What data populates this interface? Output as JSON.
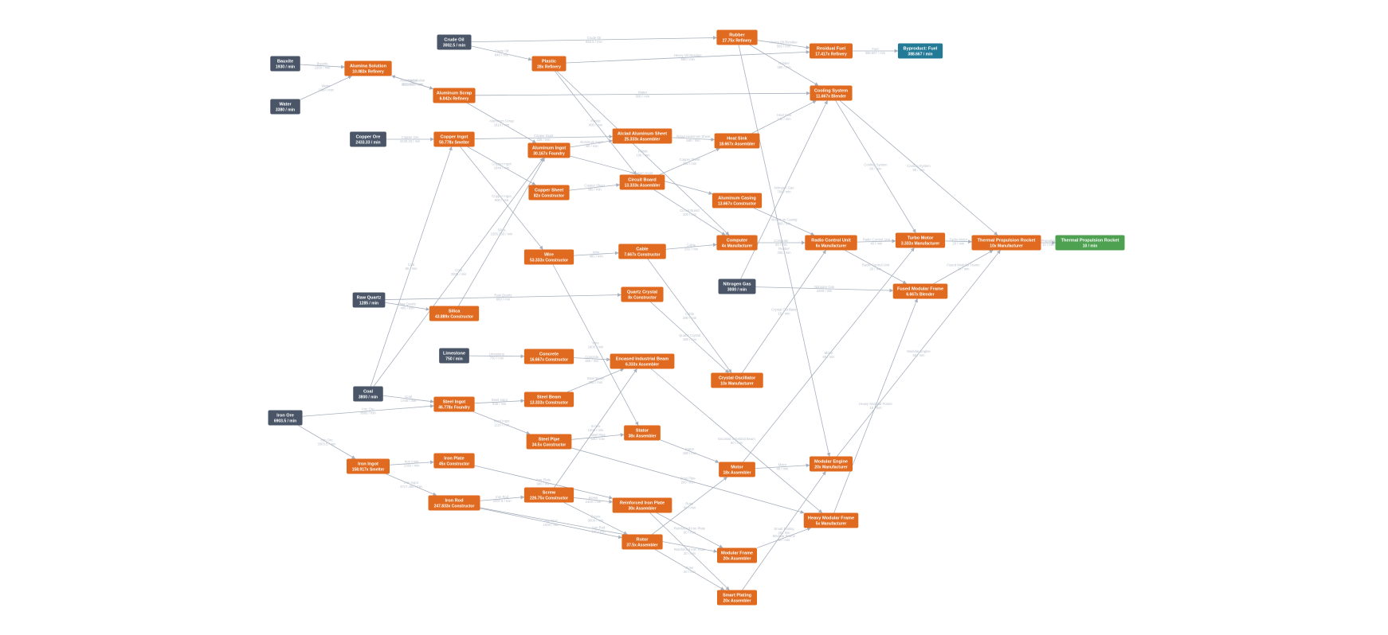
{
  "colors": {
    "source": "#4a5668",
    "machine": "#e06a1f",
    "byproduct": "#237a96",
    "goal": "#4fa152",
    "edge": "#a7b0bd",
    "edge_label": "#b8c0cb"
  },
  "nodes": [
    {
      "id": "bauxite",
      "title": "Bauxite",
      "sub": "1930 / min",
      "kind": "source"
    },
    {
      "id": "water",
      "title": "Water",
      "sub": "3380 / min",
      "kind": "source"
    },
    {
      "id": "crude",
      "title": "Crude Oil",
      "sub": "3002.5 / min",
      "kind": "source"
    },
    {
      "id": "copperore",
      "title": "Copper Ore",
      "sub": "2433.33 / min",
      "kind": "source"
    },
    {
      "id": "rawquartz",
      "title": "Raw Quartz",
      "sub": "1285 / min",
      "kind": "source"
    },
    {
      "id": "limestone",
      "title": "Limestone",
      "sub": "750 / min",
      "kind": "source"
    },
    {
      "id": "coal",
      "title": "Coal",
      "sub": "3800 / min",
      "kind": "source"
    },
    {
      "id": "ironore",
      "title": "Iron Ore",
      "sub": "6903.5 / min",
      "kind": "source"
    },
    {
      "id": "nitrogen",
      "title": "Nitrogen Gas",
      "sub": "3000 / min",
      "kind": "source"
    },
    {
      "id": "alumina",
      "title": "Alumina Solution",
      "sub": "10.083x Refinery",
      "kind": "machine"
    },
    {
      "id": "alscrap",
      "title": "Aluminum Scrap",
      "sub": "6.042x Refinery",
      "kind": "machine"
    },
    {
      "id": "plastic",
      "title": "Plastic",
      "sub": "28x Refinery",
      "kind": "machine"
    },
    {
      "id": "rubber",
      "title": "Rubber",
      "sub": "27.75x Refinery",
      "kind": "machine"
    },
    {
      "id": "resfuel",
      "title": "Residual Fuel",
      "sub": "17.417x Refinery",
      "kind": "machine"
    },
    {
      "id": "byfuel",
      "title": "Byproduct: Fuel",
      "sub": "388.667 / min",
      "kind": "byproduct"
    },
    {
      "id": "cooling",
      "title": "Cooling System",
      "sub": "11.667x Blender",
      "kind": "machine"
    },
    {
      "id": "copperingot",
      "title": "Copper Ingot",
      "sub": "50.778x Smelter",
      "kind": "machine"
    },
    {
      "id": "alingot",
      "title": "Aluminum Ingot",
      "sub": "30.167x Foundry",
      "kind": "machine"
    },
    {
      "id": "alclad",
      "title": "Alclad Aluminum Sheet",
      "sub": "25.333x Assembler",
      "kind": "machine"
    },
    {
      "id": "heatsink",
      "title": "Heat Sink",
      "sub": "18.667x Assembler",
      "kind": "machine"
    },
    {
      "id": "coppersheet",
      "title": "Copper Sheet",
      "sub": "82x Constructor",
      "kind": "machine"
    },
    {
      "id": "circuit",
      "title": "Circuit Board",
      "sub": "13.333x Assembler",
      "kind": "machine"
    },
    {
      "id": "alcasing",
      "title": "Aluminum Casing",
      "sub": "13.667x Constructor",
      "kind": "machine"
    },
    {
      "id": "wire",
      "title": "Wire",
      "sub": "53.333x Constructor",
      "kind": "machine"
    },
    {
      "id": "cable",
      "title": "Cable",
      "sub": "7.667x Constructor",
      "kind": "machine"
    },
    {
      "id": "computer",
      "title": "Computer",
      "sub": "4x Manufacturer",
      "kind": "machine"
    },
    {
      "id": "radio",
      "title": "Radio Control Unit",
      "sub": "6x Manufacturer",
      "kind": "machine"
    },
    {
      "id": "turbo",
      "title": "Turbo Motor",
      "sub": "3.333x Manufacturer",
      "kind": "machine"
    },
    {
      "id": "tpr",
      "title": "Thermal Propulsion Rocket",
      "sub": "10x Manufacturer",
      "kind": "machine"
    },
    {
      "id": "goal",
      "title": "Thermal Propulsion Rocket",
      "sub": "10 / min",
      "kind": "goal"
    },
    {
      "id": "fmf",
      "title": "Fused Modular Frame",
      "sub": "6.667x Blender",
      "kind": "machine"
    },
    {
      "id": "quartz",
      "title": "Quartz Crystal",
      "sub": "8x Constructor",
      "kind": "machine"
    },
    {
      "id": "silica",
      "title": "Silica",
      "sub": "43.889x Constructor",
      "kind": "machine"
    },
    {
      "id": "concrete",
      "title": "Concrete",
      "sub": "16.667x Constructor",
      "kind": "machine"
    },
    {
      "id": "eib",
      "title": "Encased Industrial Beam",
      "sub": "6.333x Assembler",
      "kind": "machine"
    },
    {
      "id": "crystalosc",
      "title": "Crystal Oscillator",
      "sub": "10x Manufacturer",
      "kind": "machine"
    },
    {
      "id": "steelingot",
      "title": "Steel Ingot",
      "sub": "46.778x Foundry",
      "kind": "machine"
    },
    {
      "id": "steelbeam",
      "title": "Steel Beam",
      "sub": "13.333x Constructor",
      "kind": "machine"
    },
    {
      "id": "steelpipe",
      "title": "Steel Pipe",
      "sub": "34.5x Constructor",
      "kind": "machine"
    },
    {
      "id": "stator",
      "title": "Stator",
      "sub": "38x Assembler",
      "kind": "machine"
    },
    {
      "id": "motor",
      "title": "Motor",
      "sub": "18x Assembler",
      "kind": "machine"
    },
    {
      "id": "modengine",
      "title": "Modular Engine",
      "sub": "20x Manufacturer",
      "kind": "machine"
    },
    {
      "id": "ironingot",
      "title": "Iron Ingot",
      "sub": "158.917x Smelter",
      "kind": "machine"
    },
    {
      "id": "ironplate",
      "title": "Iron Plate",
      "sub": "45x Constructor",
      "kind": "machine"
    },
    {
      "id": "ironrod",
      "title": "Iron Rod",
      "sub": "247.833x Constructor",
      "kind": "machine"
    },
    {
      "id": "screw",
      "title": "Screw",
      "sub": "226.75x Constructor",
      "kind": "machine"
    },
    {
      "id": "rip",
      "title": "Reinforced Iron Plate",
      "sub": "30x Assembler",
      "kind": "machine"
    },
    {
      "id": "hmf",
      "title": "Heavy Modular Frame",
      "sub": "5x Manufacturer",
      "kind": "machine"
    },
    {
      "id": "rotor",
      "title": "Rotor",
      "sub": "37.5x Assembler",
      "kind": "machine"
    },
    {
      "id": "modframe",
      "title": "Modular Frame",
      "sub": "20x Assembler",
      "kind": "machine"
    },
    {
      "id": "smart",
      "title": "Smart Plating",
      "sub": "20x Assembler",
      "kind": "machine"
    }
  ],
  "edges": [
    {
      "from": "bauxite",
      "to": "alumina",
      "label": "Bauxite",
      "rate": "1930 / min"
    },
    {
      "from": "water",
      "to": "alumina",
      "label": "Water",
      "rate": "2380 / min"
    },
    {
      "from": "alumina",
      "to": "alscrap",
      "label": "Alumina Solution",
      "rate": "1813.333 / min"
    },
    {
      "from": "alscrap",
      "to": "alumina",
      "label": "Water",
      "rate": "816.667 / min"
    },
    {
      "from": "crude",
      "to": "rubber",
      "label": "Crude Oil",
      "rate": "832.5 / min"
    },
    {
      "from": "crude",
      "to": "plastic",
      "label": "Crude Oil",
      "rate": "840 / min"
    },
    {
      "from": "rubber",
      "to": "resfuel",
      "label": "Heavy Oil Residue",
      "rate": "555 / min"
    },
    {
      "from": "plastic",
      "to": "resfuel",
      "label": "Heavy Oil Residue",
      "rate": "560 / min"
    },
    {
      "from": "resfuel",
      "to": "byfuel",
      "label": "Fuel",
      "rate": "388.667 / min"
    },
    {
      "from": "rubber",
      "to": "cooling",
      "label": "Rubber",
      "rate": "280 / min"
    },
    {
      "from": "alscrap",
      "to": "cooling",
      "label": "Water",
      "rate": "580 / min"
    },
    {
      "from": "copperore",
      "to": "copperingot",
      "label": "Copper Ore",
      "rate": "2433.33 / min"
    },
    {
      "from": "alscrap",
      "to": "alingot",
      "label": "Aluminum Scrap",
      "rate": "1810 / min"
    },
    {
      "from": "copperingot",
      "to": "alclad",
      "label": "Copper Ingot",
      "rate": "228 / min"
    },
    {
      "from": "alingot",
      "to": "alclad",
      "label": "Aluminum Ingot",
      "rate": "760 / min"
    },
    {
      "from": "alclad",
      "to": "heatsink",
      "label": "Alclad Aluminum Sheet",
      "rate": "560 / min"
    },
    {
      "from": "heatsink",
      "to": "cooling",
      "label": "Heat Sink",
      "rate": "140 / min"
    },
    {
      "from": "copperingot",
      "to": "coppersheet",
      "label": "Copper Ingot",
      "rate": "1640 / min"
    },
    {
      "from": "coppersheet",
      "to": "circuit",
      "label": "Copper Sheet",
      "rate": "360 / min"
    },
    {
      "from": "plastic",
      "to": "circuit",
      "label": "Plastic",
      "rate": "400 / min"
    },
    {
      "from": "circuit",
      "to": "heatsink",
      "label": "Copper Sheet",
      "rate": "400 / min"
    },
    {
      "from": "alingot",
      "to": "alcasing",
      "label": "Aluminum Ingot",
      "rate": "900 / min"
    },
    {
      "from": "copperingot",
      "to": "wire",
      "label": "Copper Ingot",
      "rate": "800 / min"
    },
    {
      "from": "wire",
      "to": "cable",
      "label": "Wire",
      "rate": "460 / min"
    },
    {
      "from": "cable",
      "to": "computer",
      "label": "Cable",
      "rate": "230 / min"
    },
    {
      "from": "circuit",
      "to": "computer",
      "label": "Circuit Board",
      "rate": "100 / min"
    },
    {
      "from": "plastic",
      "to": "computer",
      "label": "Plastic",
      "rate": "100 / min"
    },
    {
      "from": "alcasing",
      "to": "radio",
      "label": "Aluminum Casing",
      "rate": "360 / min"
    },
    {
      "from": "computer",
      "to": "radio",
      "label": "Computer",
      "rate": "20 / min"
    },
    {
      "from": "radio",
      "to": "turbo",
      "label": "Radio Control Unit",
      "rate": "40 / min"
    },
    {
      "from": "cooling",
      "to": "turbo",
      "label": "Cooling System",
      "rate": "60 / min"
    },
    {
      "from": "cooling",
      "to": "tpr",
      "label": "Cooling System",
      "rate": "80 / min"
    },
    {
      "from": "turbo",
      "to": "tpr",
      "label": "Turbo Motor",
      "rate": "20 / min"
    },
    {
      "from": "tpr",
      "to": "goal",
      "label": "Thermal Propulsion Rocket",
      "rate": "10 / min"
    },
    {
      "from": "nitrogen",
      "to": "cooling",
      "label": "Nitrogen Gas",
      "rate": "700 / min"
    },
    {
      "from": "nitrogen",
      "to": "fmf",
      "label": "Nitrogen Gas",
      "rate": "2300 / min"
    },
    {
      "from": "radio",
      "to": "fmf",
      "label": "Radio Control Unit",
      "rate": "20 / min"
    },
    {
      "from": "fmf",
      "to": "tpr",
      "label": "Fused Modular Frame",
      "rate": "20 / min"
    },
    {
      "from": "rawquartz",
      "to": "quartz",
      "label": "Raw Quartz",
      "rate": "880 / min"
    },
    {
      "from": "rawquartz",
      "to": "silica",
      "label": "Raw Quartz",
      "rate": "405 / min"
    },
    {
      "from": "silica",
      "to": "alingot",
      "label": "Silica",
      "rate": "1655.333 / min"
    },
    {
      "from": "coal",
      "to": "alingot",
      "label": "Coal",
      "rate": "2005 / min"
    },
    {
      "from": "quartz",
      "to": "crystalosc",
      "label": "Quartz Crystal",
      "rate": "180 / min"
    },
    {
      "from": "cable",
      "to": "crystalosc",
      "label": "Cable",
      "rate": "280 / min"
    },
    {
      "from": "crystalosc",
      "to": "radio",
      "label": "Crystal Oscillator",
      "rate": "15 / min"
    },
    {
      "from": "limestone",
      "to": "concrete",
      "label": "Limestone",
      "rate": "750 / min"
    },
    {
      "from": "concrete",
      "to": "eib",
      "label": "Concrete",
      "rate": "300 / min"
    },
    {
      "from": "steelbeam",
      "to": "eib",
      "label": "Steel Beam",
      "rate": "250 / min"
    },
    {
      "from": "eib",
      "to": "hmf",
      "label": "Encased Industrial Beam",
      "rate": "50 / min"
    },
    {
      "from": "coal",
      "to": "steelingot",
      "label": "Coal",
      "rate": "1700 / min"
    },
    {
      "from": "ironore",
      "to": "steelingot",
      "label": "Iron Ore",
      "rate": "3600 / min"
    },
    {
      "from": "steelingot",
      "to": "steelbeam",
      "label": "Steel Ingot",
      "rate": "640 / min"
    },
    {
      "from": "steelingot",
      "to": "steelpipe",
      "label": "Steel Ingot",
      "rate": "1110 / min"
    },
    {
      "from": "steelpipe",
      "to": "stator",
      "label": "Steel Pipe",
      "rate": "540 / min"
    },
    {
      "from": "wire",
      "to": "stator",
      "label": "Wire",
      "rate": "1600 / min"
    },
    {
      "from": "stator",
      "to": "motor",
      "label": "Stator",
      "rate": "180 / min"
    },
    {
      "from": "steelpipe",
      "to": "hmf",
      "label": "Steel Pipe",
      "rate": "200 / min"
    },
    {
      "from": "motor",
      "to": "turbo",
      "label": "Motor",
      "rate": "60 / min"
    },
    {
      "from": "motor",
      "to": "modengine",
      "label": "Motor",
      "rate": "40 / min"
    },
    {
      "from": "rubber",
      "to": "modengine",
      "label": "Rubber",
      "rate": "300 / min"
    },
    {
      "from": "smart",
      "to": "modengine",
      "label": "Smart Plating",
      "rate": "40 / min"
    },
    {
      "from": "modengine",
      "to": "tpr",
      "label": "Modular Engine",
      "rate": "50 / min"
    },
    {
      "from": "hmf",
      "to": "fmf",
      "label": "Heavy Modular Frame",
      "rate": "10 / min"
    },
    {
      "from": "ironore",
      "to": "ironingot",
      "label": "Iron Ore",
      "rate": "3303.5 / min"
    },
    {
      "from": "ironingot",
      "to": "ironplate",
      "label": "Iron Ingot",
      "rate": "1350 / min"
    },
    {
      "from": "ironingot",
      "to": "ironrod",
      "label": "Iron Ingot",
      "rate": "3717.465 / min"
    },
    {
      "from": "coal",
      "to": "copperingot",
      "label": "Coal",
      "rate": "95 / min"
    },
    {
      "from": "ironplate",
      "to": "rip",
      "label": "Iron Plate",
      "rate": "900 / min"
    },
    {
      "from": "ironrod",
      "to": "screw",
      "label": "Iron Rod",
      "rate": "2267.5 / min"
    },
    {
      "from": "screw",
      "to": "rip",
      "label": "Screw",
      "rate": "2400 / min"
    },
    {
      "from": "screw",
      "to": "eib",
      "label": "Screw",
      "rate": "1400 / min"
    },
    {
      "from": "screw",
      "to": "rotor",
      "label": "Screw",
      "rate": "3000 / min"
    },
    {
      "from": "ironrod",
      "to": "rotor",
      "label": "Iron Rod",
      "rate": "1000 / min"
    },
    {
      "from": "ironrod",
      "to": "modframe",
      "label": "Iron Rod",
      "rate": "240 / min"
    },
    {
      "from": "rip",
      "to": "modframe",
      "label": "Reinforced Iron Plate",
      "rate": "60 / min"
    },
    {
      "from": "rip",
      "to": "smart",
      "label": "Reinforced Iron Plate",
      "rate": "20 / min"
    },
    {
      "from": "rotor",
      "to": "smart",
      "label": "Rotor",
      "rate": "20 / min"
    },
    {
      "from": "rotor",
      "to": "motor",
      "label": "Rotor",
      "rate": "40 / min"
    },
    {
      "from": "modframe",
      "to": "hmf",
      "label": "Modular Frame",
      "rate": "50 / min"
    }
  ]
}
